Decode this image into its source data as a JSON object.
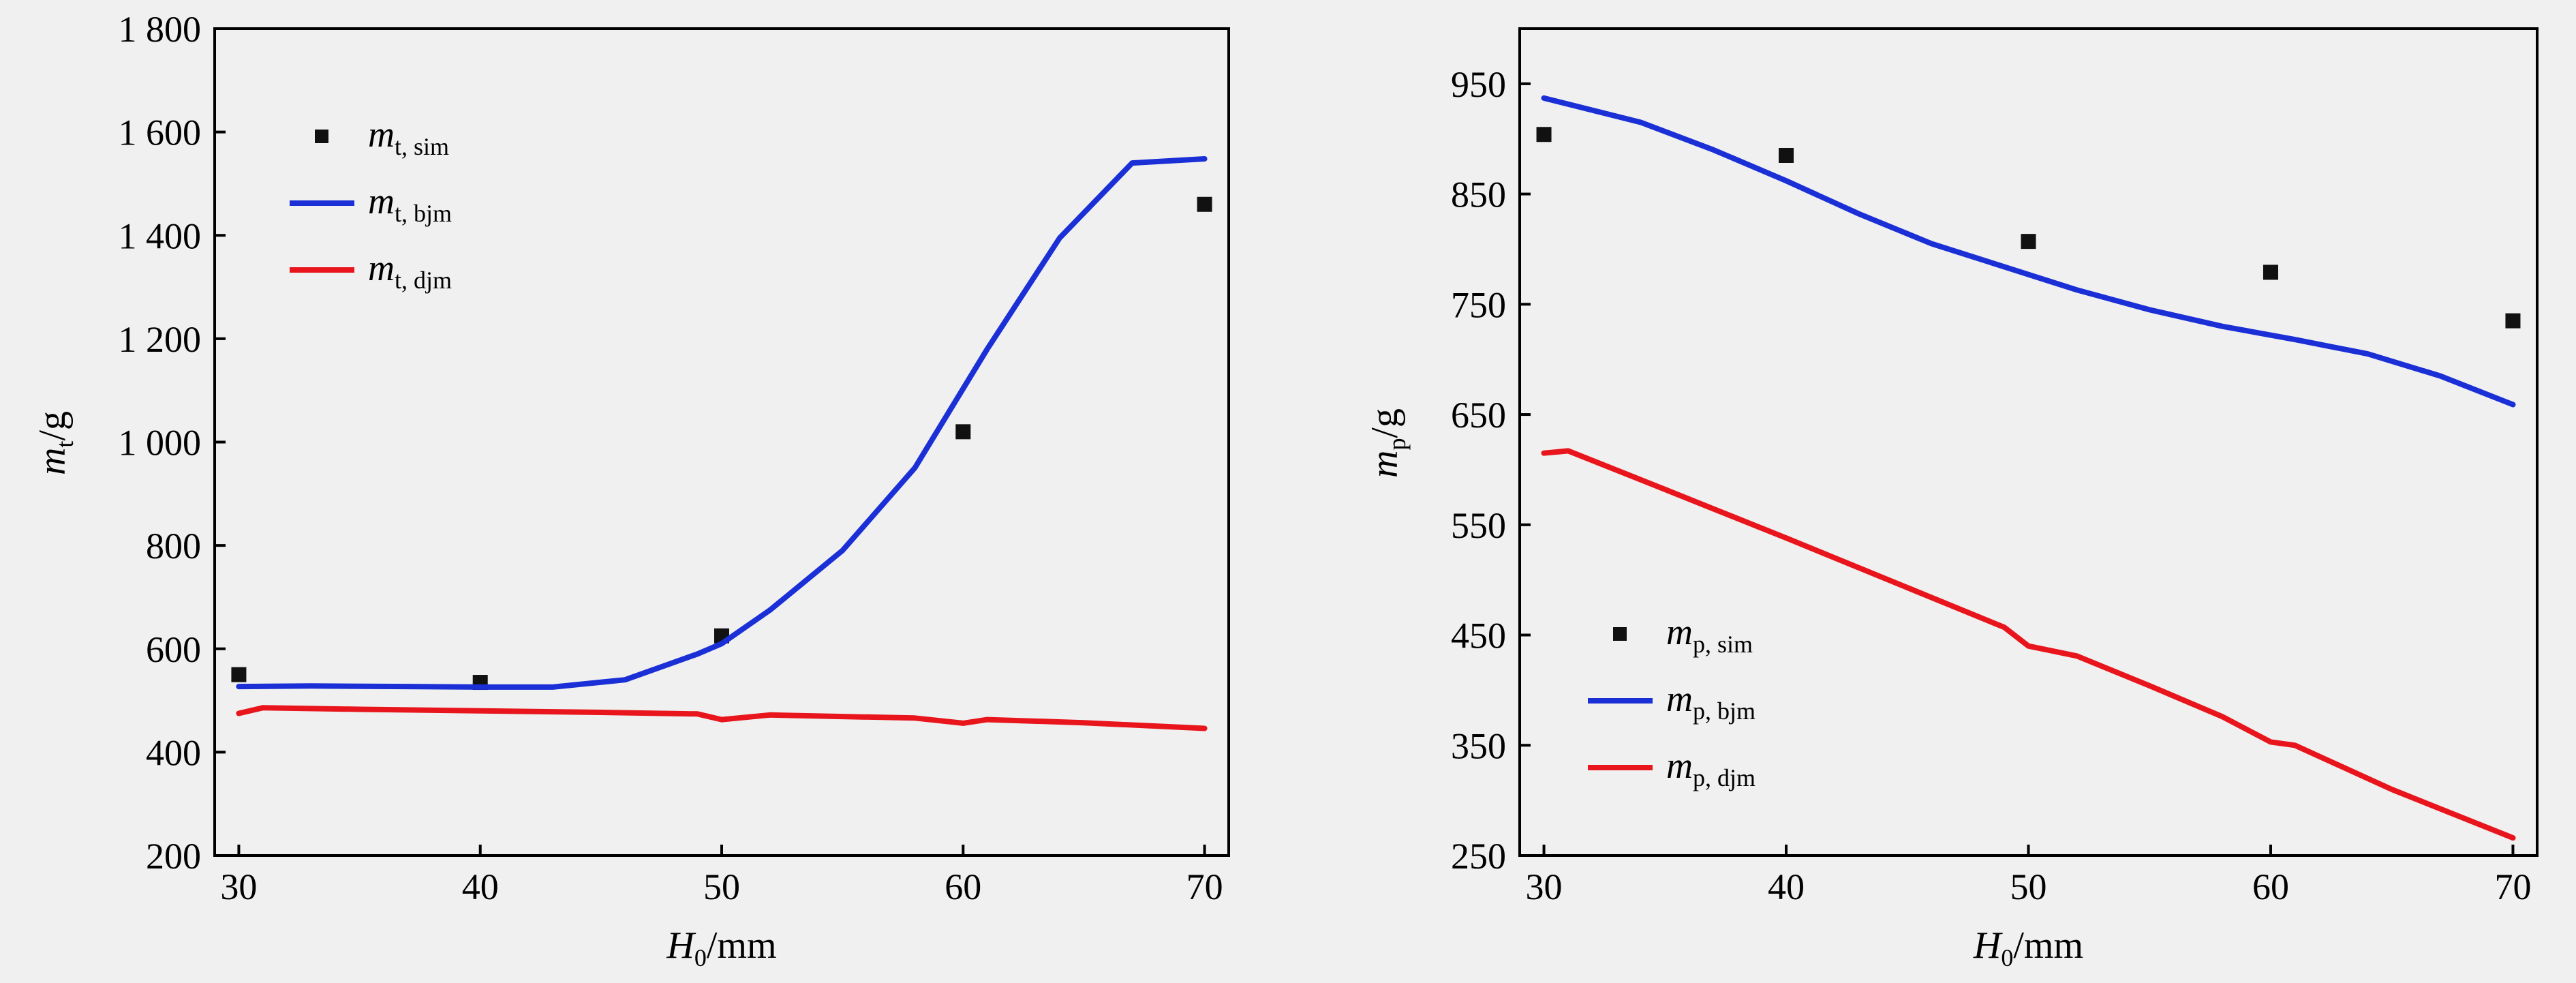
{
  "chart_data": [
    {
      "type": "line",
      "xlabel": {
        "base": "H",
        "sub": "0",
        "unit": "/mm"
      },
      "ylabel": {
        "base": "m",
        "sub": "t",
        "unit": "/g"
      },
      "xlim": [
        29,
        71
      ],
      "ylim": [
        200,
        1800
      ],
      "xticks": [
        30,
        40,
        50,
        60,
        70
      ],
      "yticks": [
        200,
        400,
        600,
        800,
        1000,
        1200,
        1400,
        1600,
        1800
      ],
      "ytick_labels": [
        "200",
        "400",
        "600",
        "800",
        "1 000",
        "1 200",
        "1 400",
        "1 600",
        "1 800"
      ],
      "legend_position": "upper-left",
      "series": [
        {
          "name": {
            "base": "m",
            "sub": "t, sim"
          },
          "kind": "scatter",
          "color": "#111111",
          "x": [
            30,
            40,
            50,
            60,
            70
          ],
          "y": [
            550,
            535,
            625,
            1020,
            1460
          ]
        },
        {
          "name": {
            "base": "m",
            "sub": "t, bjm"
          },
          "kind": "line",
          "color": "#1a2fd6",
          "x": [
            30,
            33,
            37,
            40,
            43,
            46,
            49,
            50,
            52,
            55,
            58,
            61,
            64,
            67,
            70
          ],
          "y": [
            527,
            528,
            527,
            526,
            526,
            540,
            590,
            610,
            675,
            790,
            950,
            1180,
            1395,
            1540,
            1548
          ]
        },
        {
          "name": {
            "base": "m",
            "sub": "t, djm"
          },
          "kind": "line",
          "color": "#e8151c",
          "x": [
            30,
            31,
            35,
            40,
            45,
            49,
            50,
            52,
            55,
            58,
            60,
            61,
            65,
            70
          ],
          "y": [
            475,
            486,
            483,
            480,
            477,
            474,
            463,
            472,
            469,
            466,
            456,
            463,
            457,
            446
          ]
        }
      ]
    },
    {
      "type": "line",
      "xlabel": {
        "base": "H",
        "sub": "0",
        "unit": "/mm"
      },
      "ylabel": {
        "base": "m",
        "sub": "p",
        "unit": "/g"
      },
      "xlim": [
        29,
        71
      ],
      "ylim": [
        250,
        1000
      ],
      "xticks": [
        30,
        40,
        50,
        60,
        70
      ],
      "yticks": [
        250,
        350,
        450,
        550,
        650,
        750,
        850,
        950
      ],
      "ytick_labels": [
        "250",
        "350",
        "450",
        "550",
        "650",
        "750",
        "850",
        "950"
      ],
      "legend_position": "lower-left",
      "series": [
        {
          "name": {
            "base": "m",
            "sub": "p, sim"
          },
          "kind": "scatter",
          "color": "#111111",
          "x": [
            30,
            40,
            50,
            60,
            70
          ],
          "y": [
            904,
            885,
            807,
            779,
            735
          ]
        },
        {
          "name": {
            "base": "m",
            "sub": "p, bjm"
          },
          "kind": "line",
          "color": "#1a2fd6",
          "x": [
            30,
            34,
            37,
            40,
            43,
            46,
            50,
            52,
            55,
            58,
            61,
            64,
            67,
            70
          ],
          "y": [
            937,
            915,
            890,
            862,
            832,
            805,
            777,
            763,
            745,
            730,
            718,
            705,
            685,
            659
          ]
        },
        {
          "name": {
            "base": "m",
            "sub": "p, djm"
          },
          "kind": "line",
          "color": "#e8151c",
          "x": [
            30,
            31,
            35,
            40,
            45,
            49,
            50,
            52,
            55,
            58,
            60,
            61,
            65,
            70
          ],
          "y": [
            615,
            617,
            582,
            538,
            493,
            457,
            440,
            431,
            404,
            376,
            353,
            350,
            310,
            266
          ]
        }
      ]
    }
  ]
}
